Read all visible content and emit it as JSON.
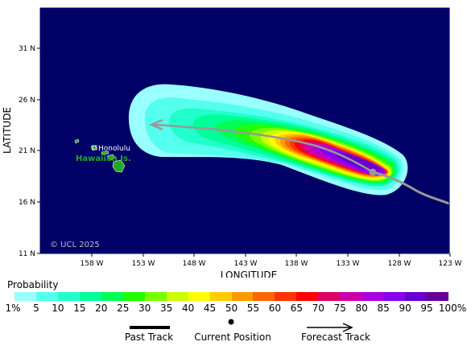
{
  "map": {
    "copyright": "© UCL 2025",
    "x_axis_title": "LONGITUDE",
    "y_axis_title": "LATITUDE",
    "lon_ticks": [
      "158 W",
      "153 W",
      "148 W",
      "143 W",
      "138 W",
      "133 W",
      "128 W",
      "123 W"
    ],
    "lat_ticks": [
      "31 N",
      "26 N",
      "21 N",
      "16 N",
      "11 N"
    ],
    "place_labels": {
      "city": "Honolulu",
      "islands": "Hawaiian Is."
    },
    "colors": {
      "ocean": "#000066",
      "land": "#22aa22",
      "track": "#999999"
    }
  },
  "legend": {
    "title": "Probability",
    "labels": [
      "1%",
      "5",
      "10",
      "15",
      "20",
      "25",
      "30",
      "35",
      "40",
      "45",
      "50",
      "55",
      "60",
      "65",
      "70",
      "75",
      "80",
      "85",
      "90",
      "95",
      "100%"
    ],
    "colors": [
      "#99ffff",
      "#55ffee",
      "#22ffcc",
      "#00ff99",
      "#00ff55",
      "#22ff00",
      "#77ff00",
      "#ccff00",
      "#ffff00",
      "#ffcc00",
      "#ff9900",
      "#ff6600",
      "#ff3300",
      "#ff0000",
      "#dd0066",
      "#cc00aa",
      "#aa00dd",
      "#8800ee",
      "#6600cc",
      "#660099"
    ],
    "past_track_label": "Past Track",
    "current_position_label": "Current Position",
    "forecast_track_label": "Forecast Track"
  }
}
